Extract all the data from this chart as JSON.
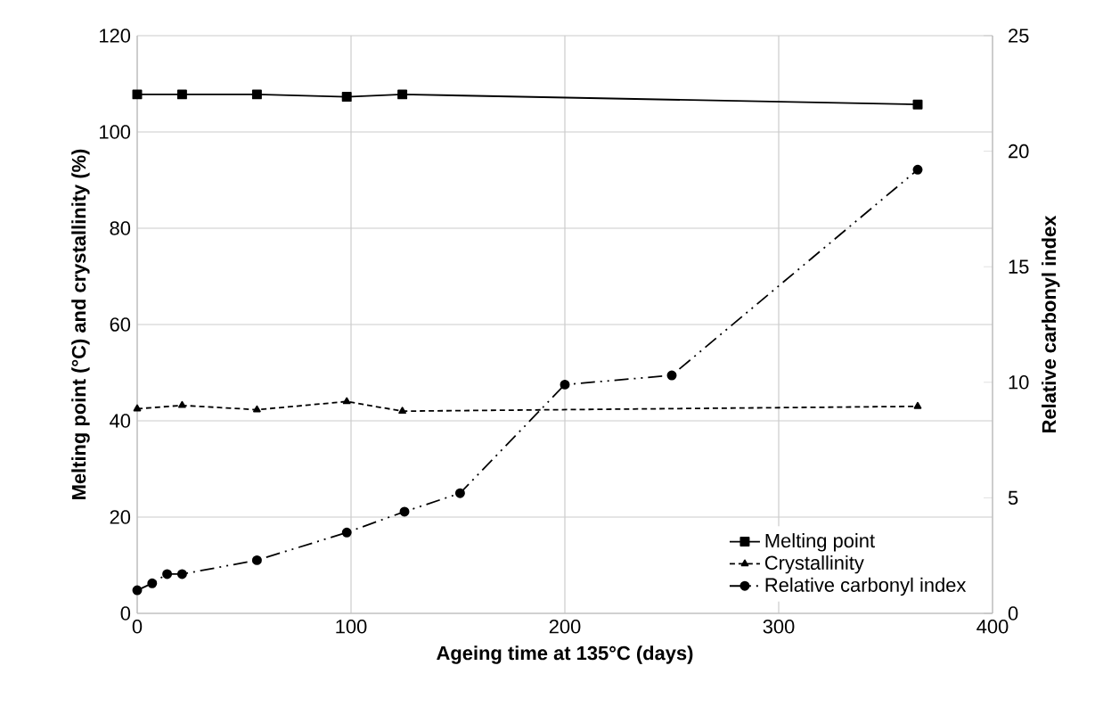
{
  "chart_data": {
    "type": "line",
    "xlabel": "Ageing time at 135°C (days)",
    "ylabel": "Melting point (°C)  and crystallinity (%)",
    "y2label": "Relative carbonyl index",
    "xlim": [
      0,
      400
    ],
    "xticks": [
      0,
      100,
      200,
      300,
      400
    ],
    "ylim": [
      0,
      120
    ],
    "yticks": [
      0,
      20,
      40,
      60,
      80,
      100,
      120
    ],
    "y2lim": [
      0,
      25
    ],
    "y2ticks": [
      0,
      5,
      10,
      15,
      20,
      25
    ],
    "grid": true,
    "legend": "bottom right",
    "series": [
      {
        "name": "Melting point",
        "color": "#000000",
        "marker": "square",
        "line_style": "solid",
        "x": [
          0,
          21,
          56,
          98,
          124,
          365
        ],
        "values": [
          107.8,
          107.8,
          107.8,
          107.3,
          107.8,
          105.7
        ]
      },
      {
        "name": "Crystallinity",
        "color": "#000000",
        "marker": "triangle",
        "line_style": "dashed",
        "x": [
          0,
          21,
          56,
          98,
          124,
          365
        ],
        "values": [
          42.5,
          43.2,
          42.3,
          44,
          42,
          43
        ]
      },
      {
        "name": "Relative carbonyl index",
        "color": "#000000",
        "marker": "circle",
        "line_style": "dashdotdot",
        "axis": "y2",
        "x": [
          0,
          7,
          14,
          21,
          56,
          98,
          125,
          151,
          200,
          250,
          365
        ],
        "values": [
          1.0,
          1.3,
          1.7,
          1.7,
          2.3,
          3.5,
          4.4,
          5.2,
          9.9,
          10.3,
          19.2
        ]
      }
    ]
  }
}
